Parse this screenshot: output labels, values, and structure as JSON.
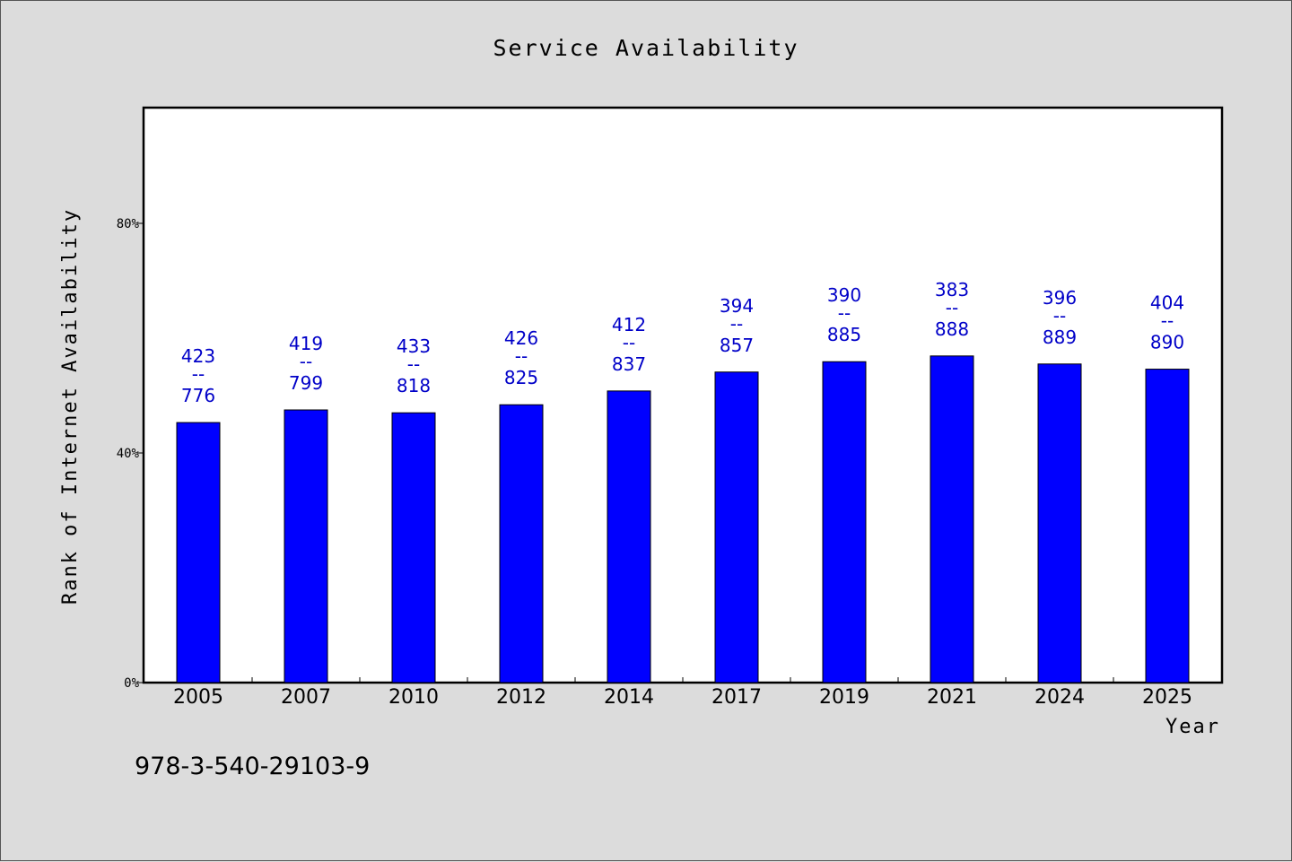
{
  "chart_data": {
    "type": "bar",
    "title": "Service Availability",
    "xlabel": "Year",
    "ylabel": "Rank of Internet Availability",
    "ylim": [
      0,
      100
    ],
    "yticks": [
      {
        "value": 0,
        "label": "0%"
      },
      {
        "value": 40,
        "label": "40%"
      },
      {
        "value": 80,
        "label": "80%"
      }
    ],
    "categories": [
      "2005",
      "2007",
      "2010",
      "2012",
      "2014",
      "2017",
      "2019",
      "2021",
      "2024",
      "2025"
    ],
    "values": [
      45.3,
      47.5,
      47.0,
      48.4,
      50.8,
      54.1,
      55.9,
      56.9,
      55.5,
      54.6
    ],
    "data_labels": [
      {
        "top": "423",
        "sep": "--",
        "bottom": "776"
      },
      {
        "top": "419",
        "sep": "--",
        "bottom": "799"
      },
      {
        "top": "433",
        "sep": "--",
        "bottom": "818"
      },
      {
        "top": "426",
        "sep": "--",
        "bottom": "825"
      },
      {
        "top": "412",
        "sep": "--",
        "bottom": "837"
      },
      {
        "top": "394",
        "sep": "--",
        "bottom": "857"
      },
      {
        "top": "390",
        "sep": "--",
        "bottom": "885"
      },
      {
        "top": "383",
        "sep": "--",
        "bottom": "888"
      },
      {
        "top": "396",
        "sep": "--",
        "bottom": "889"
      },
      {
        "top": "404",
        "sep": "--",
        "bottom": "890"
      }
    ],
    "bar_color": "#0000ff",
    "label_color": "#0000c8",
    "grid": false
  },
  "footer": {
    "isbn": "978-3-540-29103-9"
  }
}
